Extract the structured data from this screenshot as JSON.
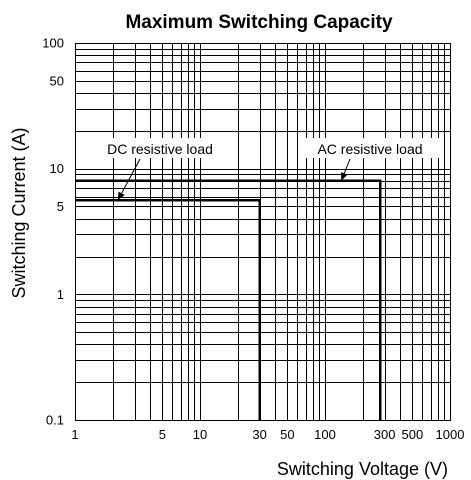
{
  "chart_data": {
    "type": "line",
    "title": "Maximum Switching Capacity",
    "xlabel": "Switching Voltage (V)",
    "ylabel": "Switching Current (A)",
    "xscale": "log",
    "yscale": "log",
    "xlim": [
      1,
      1000
    ],
    "ylim": [
      0.1,
      100
    ],
    "grid": true,
    "x_ticks": [
      1,
      5,
      10,
      30,
      50,
      100,
      300,
      500,
      1000
    ],
    "x_tick_labels": [
      "1",
      "5",
      "10",
      "30",
      "50",
      "100",
      "300",
      "500",
      "1000"
    ],
    "y_ticks": [
      0.1,
      1,
      5,
      10,
      50,
      100
    ],
    "y_tick_labels": [
      "0.1",
      "1",
      "5",
      "10",
      "50",
      "100"
    ],
    "series": [
      {
        "name": "DC resistive load",
        "x": [
          1,
          30,
          30
        ],
        "y": [
          5.6,
          5.6,
          0.1
        ]
      },
      {
        "name": "AC resistive load",
        "x": [
          1,
          277,
          277
        ],
        "y": [
          8,
          8,
          0.1
        ]
      }
    ],
    "annotations": [
      {
        "text": "DC resistive load",
        "series": 0,
        "target": [
          2.2,
          5.6
        ]
      },
      {
        "text": "AC resistive load",
        "series": 1,
        "target": [
          135,
          8
        ]
      }
    ]
  }
}
